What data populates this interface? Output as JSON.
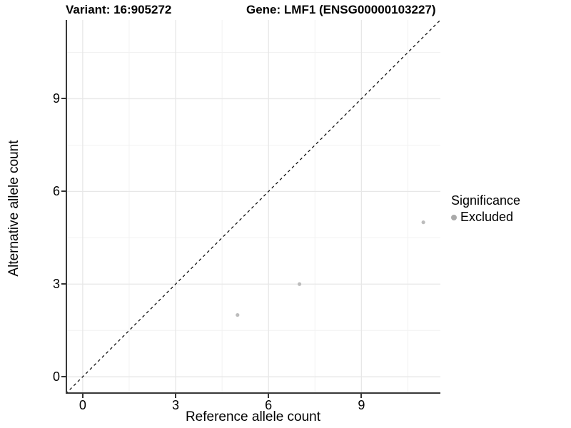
{
  "chart_data": {
    "type": "scatter",
    "titles": {
      "variant": "Variant: 16:905272",
      "gene": "Gene: LMF1 (ENSG00000103227)"
    },
    "xlabel": "Reference allele count",
    "ylabel": "Alternative allele count",
    "xlim": [
      -0.55,
      11.55
    ],
    "ylim": [
      -0.55,
      11.55
    ],
    "x_ticks": [
      0,
      3,
      6,
      9
    ],
    "y_ticks": [
      0,
      3,
      6,
      9
    ],
    "minor_gridlines": [
      1.5,
      4.5,
      7.5,
      10.5
    ],
    "grid": true,
    "identity_line": {
      "style": "dashed",
      "from": [
        -0.55,
        -0.55
      ],
      "to": [
        11.55,
        11.55
      ]
    },
    "series": [
      {
        "name": "Excluded",
        "points": [
          [
            5,
            2
          ],
          [
            7,
            3
          ],
          [
            11,
            5
          ]
        ]
      }
    ],
    "legend": {
      "position": "right",
      "title": "Significance",
      "entries": [
        {
          "label": "Excluded",
          "color": "#aaaaaa"
        }
      ]
    },
    "colors": {
      "point": "#bcbcbc",
      "grid_major": "#e7e7e7",
      "grid_minor": "#f2f2f2",
      "axis_line": "#383838",
      "dashed_line": "#111111",
      "text": "#000000"
    }
  }
}
